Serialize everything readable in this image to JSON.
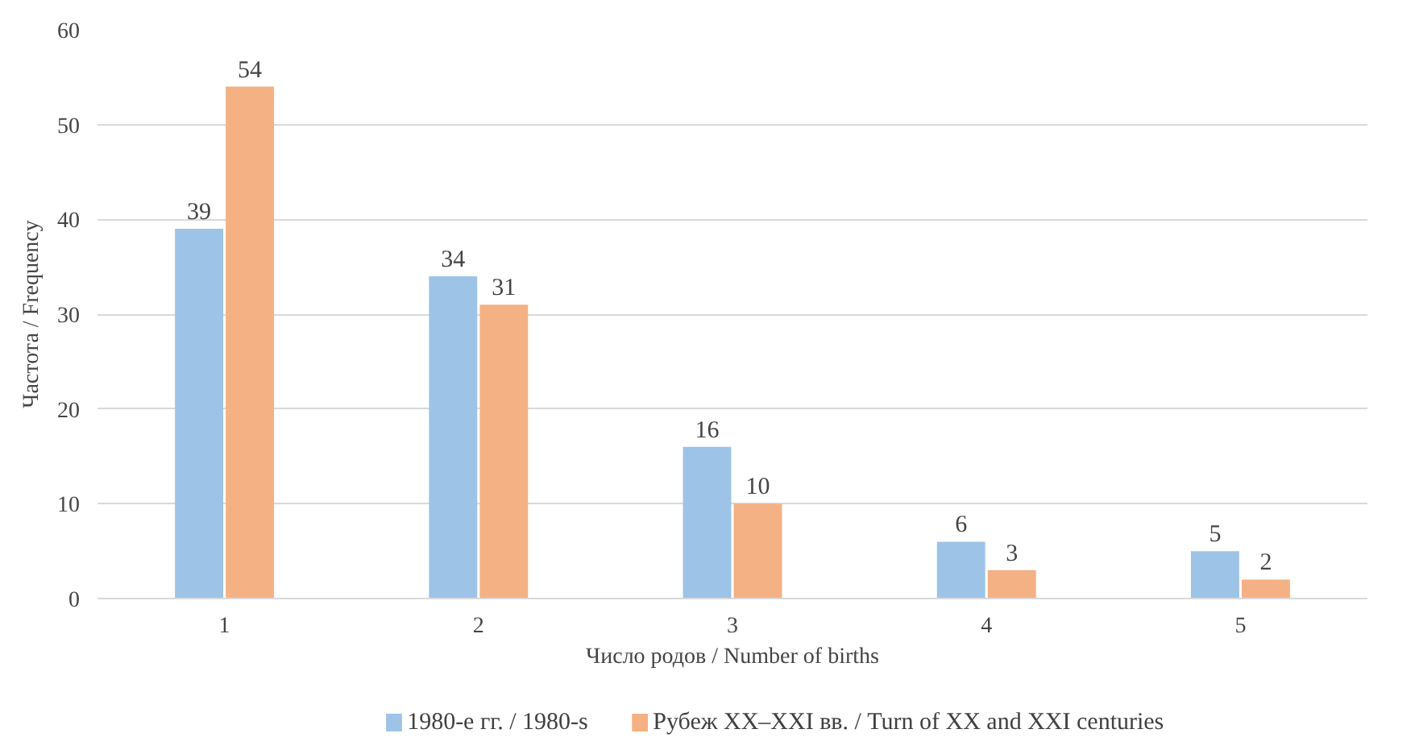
{
  "chart_data": {
    "type": "bar",
    "xlabel": "Число родов / Number of births",
    "ylabel": "Частота / Frequency",
    "categories": [
      "1",
      "2",
      "3",
      "4",
      "5"
    ],
    "series": [
      {
        "name": "1980-е гг. / 1980-s",
        "color": "#9dc3e6",
        "values": [
          39,
          34,
          16,
          6,
          5
        ]
      },
      {
        "name": "Рубеж XX–XXI вв. / Turn of XX  and XXI  centuries",
        "color": "#f4b183",
        "values": [
          54,
          31,
          10,
          3,
          2
        ]
      }
    ],
    "ylim": [
      0,
      60
    ],
    "yticks": [
      0,
      10,
      20,
      30,
      40,
      50,
      60
    ],
    "grid": "y",
    "legend": "bottom",
    "data_labels": true
  }
}
